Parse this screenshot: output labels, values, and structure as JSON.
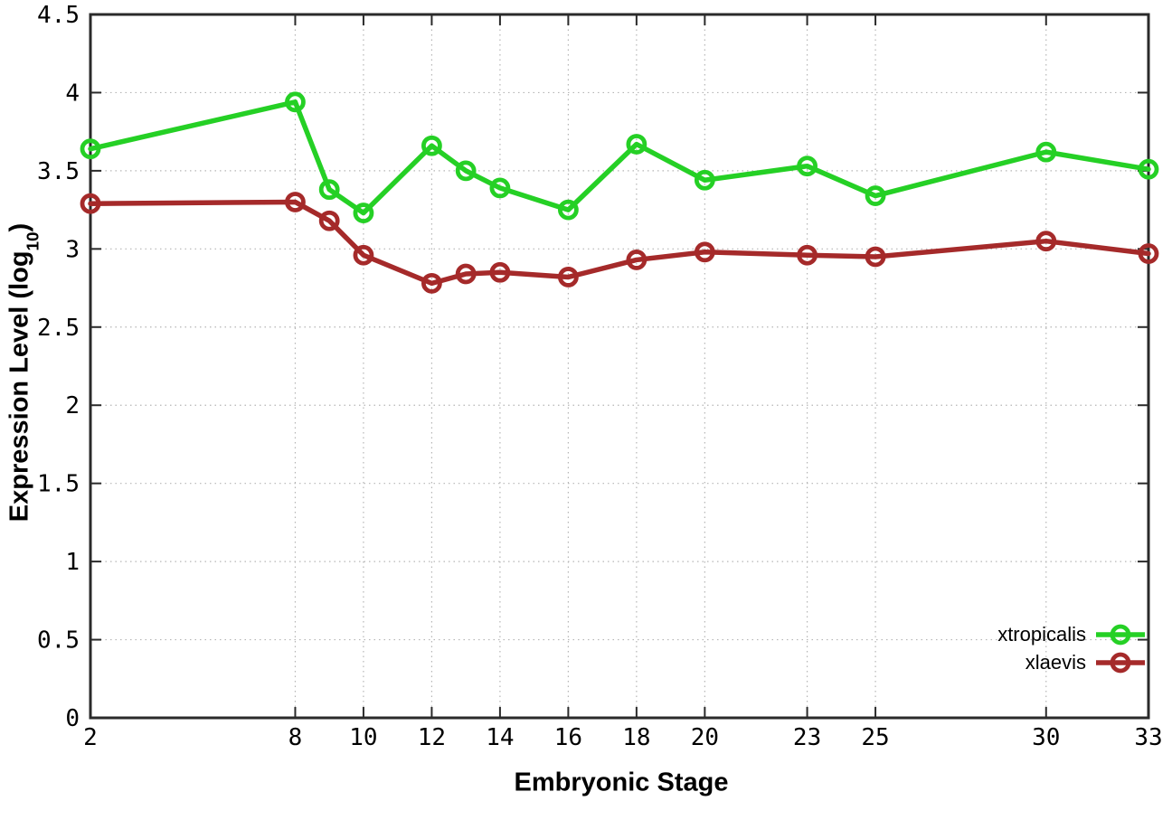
{
  "chart_data": {
    "type": "line",
    "title": "",
    "xlabel": "Embryonic Stage",
    "ylabel": "Expression Level (log10)",
    "ylabel_parts": {
      "prefix": "Expression Level (log",
      "sub": "10",
      "suffix": ")"
    },
    "xlim": [
      2,
      33
    ],
    "ylim": [
      0,
      4.5
    ],
    "x_ticks": [
      2,
      8,
      10,
      12,
      14,
      16,
      18,
      20,
      23,
      25,
      30,
      33
    ],
    "y_ticks": [
      "0",
      "0.5",
      "1",
      "1.5",
      "2",
      "2.5",
      "3",
      "3.5",
      "4",
      "4.5"
    ],
    "grid": true,
    "legend_position": "bottom-right",
    "x": [
      2,
      8,
      9,
      10,
      12,
      13,
      14,
      16,
      18,
      20,
      23,
      25,
      30,
      33
    ],
    "series": [
      {
        "name": "xtropicalis",
        "color": "#25d025",
        "values": [
          3.64,
          3.94,
          3.38,
          3.23,
          3.66,
          3.5,
          3.39,
          3.25,
          3.67,
          3.44,
          3.53,
          3.34,
          3.62,
          3.51
        ]
      },
      {
        "name": "xlaevis",
        "color": "#a52a2a",
        "values": [
          3.29,
          3.3,
          3.18,
          2.96,
          2.78,
          2.84,
          2.85,
          2.82,
          2.93,
          2.98,
          2.96,
          2.95,
          3.05,
          2.97
        ]
      }
    ]
  },
  "style": {
    "background": "#ffffff",
    "axis_color": "#2a2a2a",
    "grid_color": "#b5b5b5",
    "text_color": "#000000"
  }
}
